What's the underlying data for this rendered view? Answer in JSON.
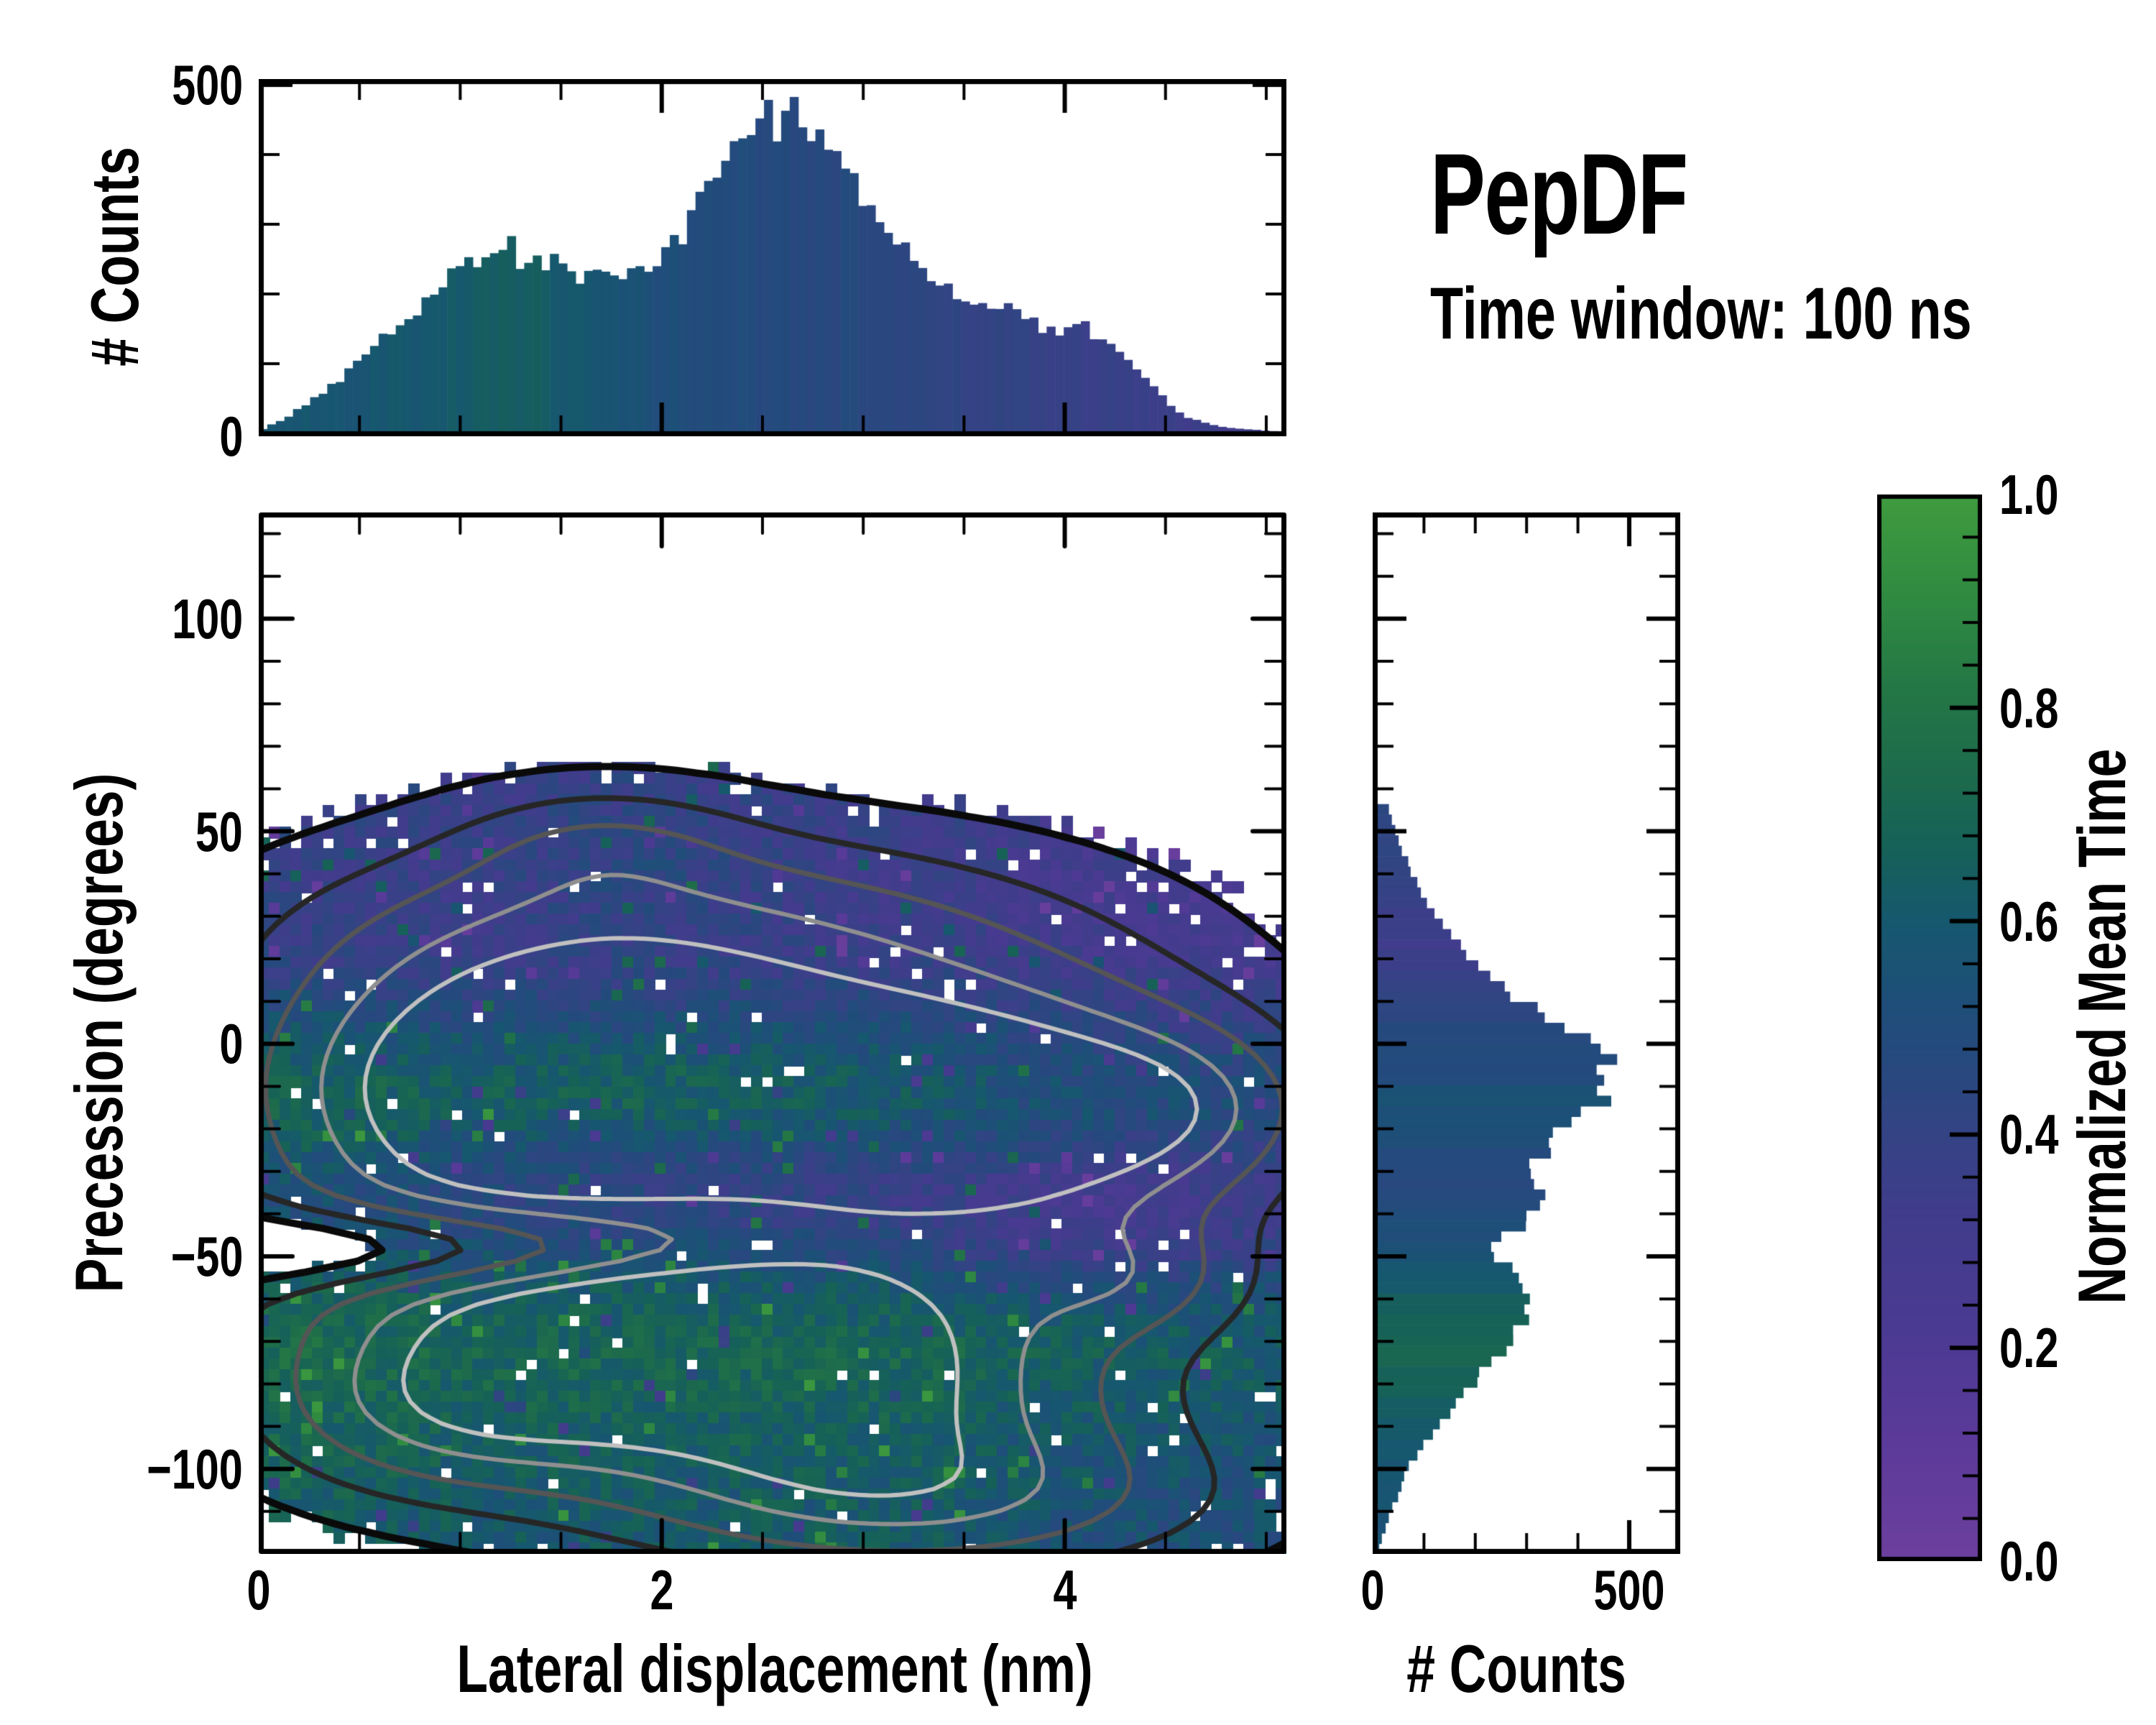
{
  "title": {
    "heading": "PepDF",
    "subtitle": "Time window: 100 ns"
  },
  "labels": {
    "top_y": "# Counts",
    "main_y": "Precession (degrees)",
    "main_x": "Lateral displacement (nm)",
    "right_x": "# Counts",
    "colorbar": "Normalized Mean Time"
  },
  "axes": {
    "main": {
      "x_range": [
        0,
        5.1
      ],
      "y_range": [
        -120,
        125
      ],
      "x_major": [
        {
          "v": 0,
          "t": "0"
        },
        {
          "v": 2,
          "t": "2"
        },
        {
          "v": 4,
          "t": "4"
        }
      ],
      "x_minor_step": 0.5,
      "y_major": [
        {
          "v": 100,
          "t": "100"
        },
        {
          "v": 50,
          "t": "50"
        },
        {
          "v": 0,
          "t": "0"
        },
        {
          "v": -50,
          "t": "−50"
        },
        {
          "v": -100,
          "t": "−100"
        }
      ],
      "y_minor_step": 10
    },
    "top": {
      "y_range": [
        0,
        500
      ],
      "y_major": [
        {
          "v": 500,
          "t": "500"
        },
        {
          "v": 0,
          "t": "0"
        }
      ],
      "y_minor_step": 100
    },
    "right": {
      "x_range": [
        0,
        600
      ],
      "x_major": [
        {
          "v": 0,
          "t": "0"
        },
        {
          "v": 500,
          "t": "500"
        }
      ],
      "x_minor_step": 100
    }
  },
  "colorbar": {
    "range": [
      0,
      1
    ],
    "majors": [
      {
        "v": 1.0,
        "t": "1.0"
      },
      {
        "v": 0.8,
        "t": "0.8"
      },
      {
        "v": 0.6,
        "t": "0.6"
      },
      {
        "v": 0.4,
        "t": "0.4"
      },
      {
        "v": 0.2,
        "t": "0.2"
      },
      {
        "v": 0.0,
        "t": "0.0"
      }
    ],
    "minor_step": 0.04
  },
  "colormap": [
    [
      0.0,
      "#6d3f9e"
    ],
    [
      0.12,
      "#5a3a99"
    ],
    [
      0.22,
      "#4a3a92"
    ],
    [
      0.32,
      "#413c8c"
    ],
    [
      0.4,
      "#344384"
    ],
    [
      0.47,
      "#26497e"
    ],
    [
      0.53,
      "#1d4f78"
    ],
    [
      0.6,
      "#16586e"
    ],
    [
      0.67,
      "#166158"
    ],
    [
      0.74,
      "#1d6b4c"
    ],
    [
      0.82,
      "#247745"
    ],
    [
      0.9,
      "#2f8a41"
    ],
    [
      1.0,
      "#3f9b3e"
    ]
  ],
  "chart_data": [
    {
      "id": "top_histogram",
      "type": "bar",
      "title": "",
      "xlabel": "Lateral displacement (nm)",
      "ylabel": "# Counts",
      "x_range": [
        0,
        5.1
      ],
      "ylim": [
        0,
        500
      ],
      "bins": 120,
      "profile": [
        [
          0.0,
          3
        ],
        [
          0.15,
          25
        ],
        [
          0.3,
          55
        ],
        [
          0.45,
          90
        ],
        [
          0.6,
          140
        ],
        [
          0.7,
          155
        ],
        [
          0.8,
          185
        ],
        [
          0.9,
          215
        ],
        [
          1.0,
          240
        ],
        [
          1.05,
          265
        ],
        [
          1.1,
          248
        ],
        [
          1.2,
          242
        ],
        [
          1.25,
          268
        ],
        [
          1.3,
          248
        ],
        [
          1.4,
          252
        ],
        [
          1.5,
          238
        ],
        [
          1.6,
          226
        ],
        [
          1.7,
          240
        ],
        [
          1.8,
          228
        ],
        [
          1.9,
          224
        ],
        [
          2.0,
          254
        ],
        [
          2.1,
          286
        ],
        [
          2.2,
          330
        ],
        [
          2.3,
          400
        ],
        [
          2.35,
          432
        ],
        [
          2.4,
          415
        ],
        [
          2.45,
          442
        ],
        [
          2.5,
          465
        ],
        [
          2.55,
          448
        ],
        [
          2.6,
          452
        ],
        [
          2.65,
          460
        ],
        [
          2.7,
          432
        ],
        [
          2.75,
          440
        ],
        [
          2.8,
          416
        ],
        [
          2.85,
          422
        ],
        [
          2.9,
          402
        ],
        [
          2.95,
          372
        ],
        [
          3.0,
          340
        ],
        [
          3.1,
          300
        ],
        [
          3.2,
          262
        ],
        [
          3.3,
          234
        ],
        [
          3.4,
          214
        ],
        [
          3.5,
          195
        ],
        [
          3.6,
          184
        ],
        [
          3.7,
          170
        ],
        [
          3.75,
          194
        ],
        [
          3.8,
          164
        ],
        [
          3.9,
          150
        ],
        [
          4.0,
          140
        ],
        [
          4.1,
          156
        ],
        [
          4.15,
          142
        ],
        [
          4.2,
          132
        ],
        [
          4.3,
          104
        ],
        [
          4.4,
          80
        ],
        [
          4.5,
          46
        ],
        [
          4.6,
          25
        ],
        [
          4.7,
          14
        ],
        [
          4.8,
          9
        ],
        [
          4.9,
          6
        ],
        [
          5.0,
          4
        ],
        [
          5.1,
          2
        ]
      ],
      "t_profile": [
        [
          0,
          0.57
        ],
        [
          0.9,
          0.6
        ],
        [
          1.25,
          0.66
        ],
        [
          1.6,
          0.58
        ],
        [
          2.0,
          0.52
        ],
        [
          2.5,
          0.48
        ],
        [
          3.0,
          0.46
        ],
        [
          3.5,
          0.42
        ],
        [
          4.0,
          0.38
        ],
        [
          4.5,
          0.35
        ],
        [
          5.1,
          0.33
        ]
      ],
      "jitter": 0.07
    },
    {
      "id": "right_histogram",
      "type": "bar",
      "orientation": "horizontal",
      "xlabel": "# Counts",
      "ylabel": "Precession (degrees)",
      "y_range": [
        -120,
        125
      ],
      "xlim": [
        0,
        600
      ],
      "bins": 100,
      "profile": [
        [
          57,
          4
        ],
        [
          55,
          28
        ],
        [
          50,
          38
        ],
        [
          45,
          52
        ],
        [
          40,
          72
        ],
        [
          35,
          92
        ],
        [
          30,
          120
        ],
        [
          25,
          150
        ],
        [
          20,
          188
        ],
        [
          15,
          228
        ],
        [
          10,
          285
        ],
        [
          5,
          345
        ],
        [
          2,
          400
        ],
        [
          0,
          430
        ],
        [
          -3,
          460
        ],
        [
          -6,
          455
        ],
        [
          -8,
          480
        ],
        [
          -10,
          435
        ],
        [
          -13,
          445
        ],
        [
          -16,
          420
        ],
        [
          -19,
          385
        ],
        [
          -22,
          335
        ],
        [
          -25,
          330
        ],
        [
          -28,
          315
        ],
        [
          -31,
          312
        ],
        [
          -34,
          320
        ],
        [
          -37,
          325
        ],
        [
          -40,
          312
        ],
        [
          -43,
          285
        ],
        [
          -46,
          248
        ],
        [
          -49,
          232
        ],
        [
          -52,
          248
        ],
        [
          -55,
          268
        ],
        [
          -58,
          284
        ],
        [
          -61,
          297
        ],
        [
          -64,
          292
        ],
        [
          -67,
          283
        ],
        [
          -70,
          258
        ],
        [
          -73,
          240
        ],
        [
          -76,
          215
        ],
        [
          -79,
          202
        ],
        [
          -82,
          178
        ],
        [
          -85,
          158
        ],
        [
          -88,
          135
        ],
        [
          -91,
          112
        ],
        [
          -94,
          92
        ],
        [
          -97,
          76
        ],
        [
          -100,
          63
        ],
        [
          -103,
          52
        ],
        [
          -106,
          44
        ],
        [
          -109,
          34
        ],
        [
          -112,
          24
        ],
        [
          -115,
          16
        ],
        [
          -118,
          9
        ],
        [
          -120,
          5
        ]
      ],
      "t_profile": [
        [
          57,
          0.44
        ],
        [
          40,
          0.4
        ],
        [
          30,
          0.35
        ],
        [
          22,
          0.33
        ],
        [
          12,
          0.4
        ],
        [
          5,
          0.46
        ],
        [
          0,
          0.48
        ],
        [
          -8,
          0.5
        ],
        [
          -14,
          0.56
        ],
        [
          -20,
          0.52
        ],
        [
          -28,
          0.47
        ],
        [
          -36,
          0.47
        ],
        [
          -44,
          0.52
        ],
        [
          -52,
          0.58
        ],
        [
          -58,
          0.63
        ],
        [
          -65,
          0.68
        ],
        [
          -72,
          0.7
        ],
        [
          -80,
          0.67
        ],
        [
          -90,
          0.62
        ],
        [
          -100,
          0.59
        ],
        [
          -110,
          0.57
        ],
        [
          -120,
          0.55
        ]
      ],
      "jitter": 0.06
    },
    {
      "id": "precession_vs_displacement_map",
      "type": "heatmap",
      "xlabel": "Lateral displacement (nm)",
      "ylabel": "Precession (degrees)",
      "color_label": "Normalized Mean Time",
      "x_range": [
        0,
        5.1
      ],
      "y_range": [
        -120,
        125
      ],
      "nx": 96,
      "ny": 96,
      "fill_threshold": 0.125,
      "edge_band": 0.09,
      "edge_prob": 0.45,
      "hole_base": 0.02,
      "hole_factor": 0.25,
      "noise": 0.09,
      "outlier_prob": 0.04,
      "outlier_mag": 0.28,
      "density_blobs": [
        {
          "a": 1.0,
          "cx": 2.25,
          "cy": -8,
          "sx": 1.25,
          "sy": 26
        },
        {
          "a": 0.8,
          "cx": 3.8,
          "cy": -18,
          "sx": 0.8,
          "sy": 24
        },
        {
          "a": 0.7,
          "cx": 0.95,
          "cy": -12,
          "sx": 0.75,
          "sy": 26
        },
        {
          "a": 0.45,
          "cx": 2.1,
          "cy": 30,
          "sx": 1.3,
          "sy": 16
        },
        {
          "a": 0.3,
          "cx": 1.7,
          "cy": 48,
          "sx": 0.5,
          "sy": 10
        },
        {
          "a": 0.4,
          "cx": 4.6,
          "cy": -15,
          "sx": 0.5,
          "sy": 14
        },
        {
          "a": 0.9,
          "cx": 1.8,
          "cy": -66,
          "sx": 1.15,
          "sy": 20
        },
        {
          "a": 0.75,
          "cx": 2.9,
          "cy": -82,
          "sx": 1.1,
          "sy": 20
        },
        {
          "a": 0.6,
          "cx": 3.3,
          "cy": -108,
          "sx": 1.05,
          "sy": 13
        },
        {
          "a": 0.5,
          "cx": 0.9,
          "cy": -88,
          "sx": 0.65,
          "sy": 14
        },
        {
          "a": 0.35,
          "cx": 4.35,
          "cy": -55,
          "sx": 0.45,
          "sy": 10
        },
        {
          "a": -0.65,
          "cx": 0.9,
          "cy": -48,
          "sx": 1.0,
          "sy": 7
        }
      ],
      "t_base": [
        [
          125,
          0.4
        ],
        [
          55,
          0.36
        ],
        [
          35,
          0.33
        ],
        [
          20,
          0.36
        ],
        [
          8,
          0.46
        ],
        [
          0,
          0.52
        ],
        [
          -8,
          0.56
        ],
        [
          -16,
          0.58
        ],
        [
          -24,
          0.52
        ],
        [
          -32,
          0.46
        ],
        [
          -40,
          0.47
        ],
        [
          -48,
          0.52
        ],
        [
          -56,
          0.6
        ],
        [
          -64,
          0.66
        ],
        [
          -72,
          0.7
        ],
        [
          -82,
          0.68
        ],
        [
          -95,
          0.64
        ],
        [
          -110,
          0.61
        ],
        [
          -120,
          0.6
        ]
      ],
      "t_x": [
        [
          0,
          0.05
        ],
        [
          0.5,
          0.03
        ],
        [
          1.0,
          0
        ],
        [
          3.4,
          0
        ],
        [
          3.9,
          -0.05
        ],
        [
          4.6,
          -0.08
        ],
        [
          5.1,
          -0.08
        ]
      ],
      "t_blobs": [
        {
          "a": -0.13,
          "cx": 4.05,
          "cy": -42,
          "sx": 0.7,
          "sy": 11
        },
        {
          "a": 0.09,
          "cx": 1.9,
          "cy": -9,
          "sx": 0.9,
          "sy": 9
        },
        {
          "a": -0.05,
          "cx": 2.6,
          "cy": -35,
          "sx": 0.8,
          "sy": 10
        },
        {
          "a": 0.06,
          "cx": 0.4,
          "cy": -20,
          "sx": 0.4,
          "sy": 15
        },
        {
          "a": 0.1,
          "cx": 1.9,
          "cy": 40,
          "sx": 0.45,
          "sy": 12
        }
      ],
      "contour_levels": [
        0.13,
        0.33,
        0.55,
        0.8,
        1.0
      ],
      "contour_colors": [
        "#0a0a0a",
        "#262626",
        "#555555",
        "#8f8f8f",
        "#c0c0c0"
      ],
      "contour_widths": [
        10,
        8,
        7,
        6,
        6
      ]
    }
  ]
}
